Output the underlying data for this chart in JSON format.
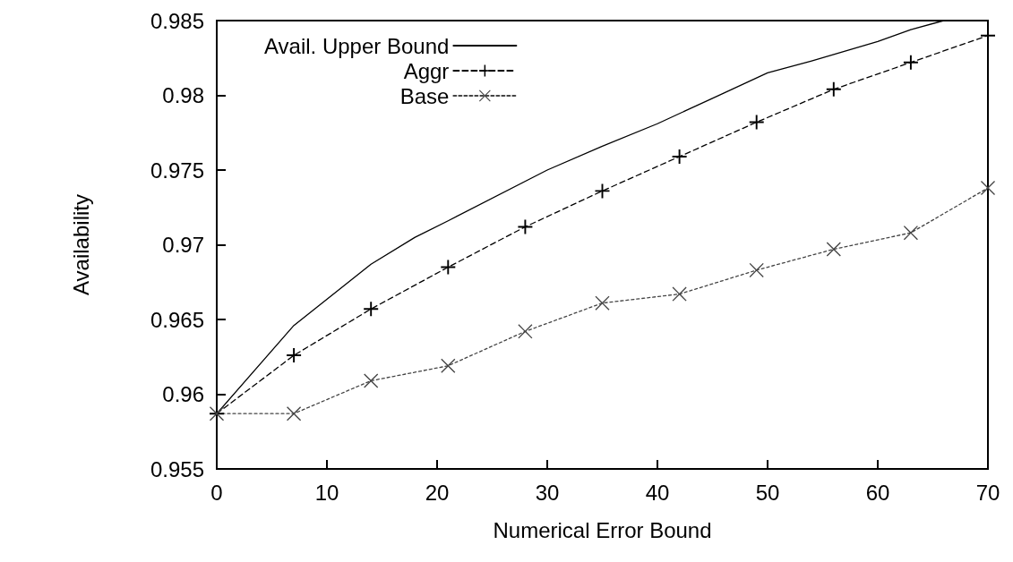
{
  "chart_data": {
    "type": "line",
    "xlabel": "Numerical Error Bound",
    "ylabel": "Availability",
    "xlim": [
      0,
      70
    ],
    "xticks": [
      0,
      10,
      20,
      30,
      40,
      50,
      60,
      70
    ],
    "ylim": [
      0.955,
      0.985
    ],
    "yticks": [
      0.955,
      0.96,
      0.965,
      0.97,
      0.975,
      0.98,
      0.985
    ],
    "grid": false,
    "legend": "top left",
    "series": [
      {
        "name": "Avail. Upper Bound",
        "color": "#000000",
        "marker": "none",
        "line_style": "solid",
        "x": [
          0,
          7,
          14,
          18,
          21,
          30,
          35,
          40,
          45,
          50,
          54,
          60,
          63,
          66
        ],
        "values": [
          0.9587,
          0.9646,
          0.9687,
          0.9705,
          0.9716,
          0.975,
          0.9766,
          0.9781,
          0.9798,
          0.9815,
          0.9823,
          0.9836,
          0.9844,
          0.985
        ]
      },
      {
        "name": "Aggr",
        "color": "#000000",
        "marker": "cross",
        "line_style": "dashed",
        "x": [
          0,
          7,
          14,
          21,
          28,
          35,
          42,
          49,
          56,
          63,
          70
        ],
        "values": [
          0.9587,
          0.9626,
          0.9657,
          0.9685,
          0.9712,
          0.9736,
          0.9759,
          0.9782,
          0.9804,
          0.9822,
          0.984
        ]
      },
      {
        "name": "Base",
        "color": "#444444",
        "marker": "x",
        "line_style": "dotted",
        "x": [
          0,
          7,
          14,
          21,
          28,
          35,
          42,
          49,
          56,
          63,
          70
        ],
        "values": [
          0.9587,
          0.9587,
          0.9609,
          0.9619,
          0.9642,
          0.9661,
          0.9667,
          0.9683,
          0.9697,
          0.9708,
          0.9738
        ]
      }
    ]
  }
}
